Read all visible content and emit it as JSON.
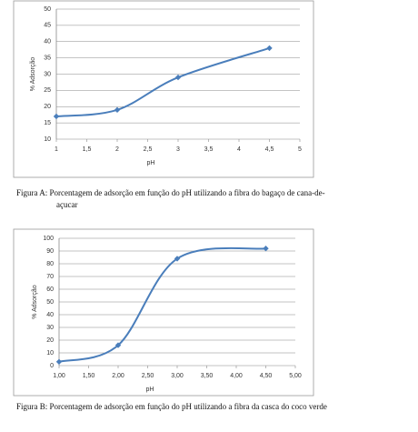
{
  "chart_data": [
    {
      "type": "line",
      "caption": "Figura A: Porcentagem de adsorção em função do pH utilizando a fibra do bagaço de cana-de-açucar",
      "xlabel": "pH",
      "ylabel": "% Adsorção",
      "x": [
        1,
        2,
        3,
        4.5
      ],
      "values": [
        17,
        19,
        29,
        38
      ],
      "color": "#4a7ebb",
      "xlim": [
        1,
        5
      ],
      "xticks": [
        1,
        {
          "value": 1.5,
          "label": "1,5"
        },
        2,
        {
          "value": 2.5,
          "label": "2,5"
        },
        3,
        {
          "value": 3.5,
          "label": "3,5"
        },
        4,
        {
          "value": 4.5,
          "label": "4,5"
        },
        5
      ],
      "ylim": [
        10,
        50
      ],
      "yticks": [
        10,
        15,
        20,
        25,
        30,
        35,
        40,
        45,
        50
      ],
      "grid": true
    },
    {
      "type": "line",
      "caption": "Figura B: Porcentagem de adsorção em função do pH utilizando a fibra da casca do coco verde",
      "xlabel": "pH",
      "ylabel": "% Adsorção",
      "x": [
        1,
        2,
        3,
        4.5
      ],
      "values": [
        3,
        16,
        84,
        92
      ],
      "color": "#4a7ebb",
      "xlim": [
        1,
        5
      ],
      "xticks": [
        {
          "value": 1,
          "label": "1,00"
        },
        {
          "value": 1.5,
          "label": "1,50"
        },
        {
          "value": 2,
          "label": "2,00"
        },
        {
          "value": 2.5,
          "label": "2,50"
        },
        {
          "value": 3,
          "label": "3,00"
        },
        {
          "value": 3.5,
          "label": "3,50"
        },
        {
          "value": 4,
          "label": "4,00"
        },
        {
          "value": 4.5,
          "label": "4,50"
        },
        {
          "value": 5,
          "label": "5,00"
        }
      ],
      "ylim": [
        0,
        100
      ],
      "yticks": [
        0,
        10,
        20,
        30,
        40,
        50,
        60,
        70,
        80,
        90,
        100
      ],
      "grid": true
    }
  ]
}
